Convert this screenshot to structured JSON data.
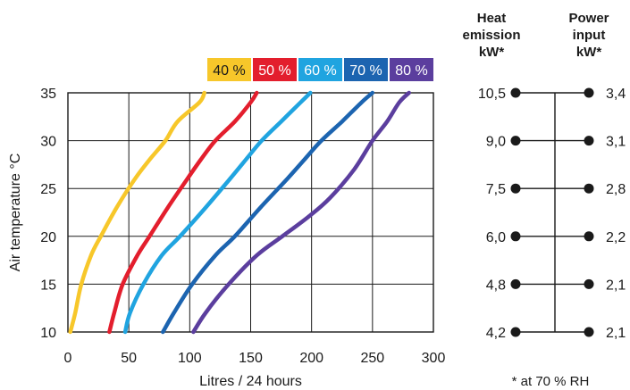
{
  "chart_data": {
    "type": "line",
    "xlabel": "Litres / 24 hours",
    "ylabel": "Air temperature °C",
    "xlim": [
      0,
      300
    ],
    "ylim": [
      10,
      35
    ],
    "x_ticks": [
      "0",
      "50",
      "100",
      "150",
      "200",
      "250",
      "300"
    ],
    "y_ticks": [
      "10",
      "15",
      "20",
      "25",
      "30",
      "35"
    ],
    "grid": true,
    "legend_position": "top-right",
    "series": [
      {
        "name": "40 %",
        "color": "#f7c72a",
        "points": [
          [
            2,
            10
          ],
          [
            6,
            12
          ],
          [
            11,
            15
          ],
          [
            19,
            18
          ],
          [
            27,
            20
          ],
          [
            40,
            23
          ],
          [
            55,
            26
          ],
          [
            67,
            28
          ],
          [
            80,
            30
          ],
          [
            90,
            32
          ],
          [
            108,
            34
          ],
          [
            112,
            35
          ]
        ]
      },
      {
        "name": "50 %",
        "color": "#e31e2d",
        "points": [
          [
            34,
            10
          ],
          [
            38,
            12
          ],
          [
            45,
            15
          ],
          [
            57,
            18
          ],
          [
            67,
            20
          ],
          [
            82,
            23
          ],
          [
            98,
            26
          ],
          [
            109,
            28
          ],
          [
            121,
            30
          ],
          [
            137,
            32
          ],
          [
            150,
            34
          ],
          [
            155,
            35
          ]
        ]
      },
      {
        "name": "60 %",
        "color": "#20a4e0",
        "points": [
          [
            47,
            10
          ],
          [
            51,
            12
          ],
          [
            62,
            15
          ],
          [
            77,
            18
          ],
          [
            92,
            20
          ],
          [
            113,
            23
          ],
          [
            133,
            26
          ],
          [
            146,
            28
          ],
          [
            159,
            30
          ],
          [
            175,
            32
          ],
          [
            191,
            34
          ],
          [
            199,
            35
          ]
        ]
      },
      {
        "name": "70 %",
        "color": "#1c64b0",
        "points": [
          [
            78,
            10
          ],
          [
            87,
            12
          ],
          [
            102,
            15
          ],
          [
            121,
            18
          ],
          [
            137,
            20
          ],
          [
            158,
            23
          ],
          [
            180,
            26
          ],
          [
            194,
            28
          ],
          [
            208,
            30
          ],
          [
            225,
            32
          ],
          [
            241,
            34
          ],
          [
            250,
            35
          ]
        ]
      },
      {
        "name": "80 %",
        "color": "#5b3e9e",
        "points": [
          [
            103,
            10
          ],
          [
            113,
            12
          ],
          [
            132,
            15
          ],
          [
            155,
            18
          ],
          [
            176,
            20
          ],
          [
            197,
            22
          ],
          [
            215,
            24
          ],
          [
            235,
            27
          ],
          [
            250,
            30
          ],
          [
            262,
            32
          ],
          [
            272,
            34
          ],
          [
            280,
            35
          ]
        ]
      }
    ]
  },
  "side_table": {
    "heat_title_lines": [
      "Heat",
      "emission",
      "kW*"
    ],
    "power_title_lines": [
      "Power",
      "input",
      "kW*"
    ],
    "rows": [
      {
        "temp": 35,
        "heat": "10,5",
        "power": "3,4"
      },
      {
        "temp": 30,
        "heat": "9,0",
        "power": "3,1"
      },
      {
        "temp": 25,
        "heat": "7,5",
        "power": "2,8"
      },
      {
        "temp": 20,
        "heat": "6,0",
        "power": "2,2"
      },
      {
        "temp": 15,
        "heat": "4,8",
        "power": "2,1"
      },
      {
        "temp": 10,
        "heat": "4,2",
        "power": "2,1"
      }
    ],
    "footnote": "* at 70 % RH"
  }
}
